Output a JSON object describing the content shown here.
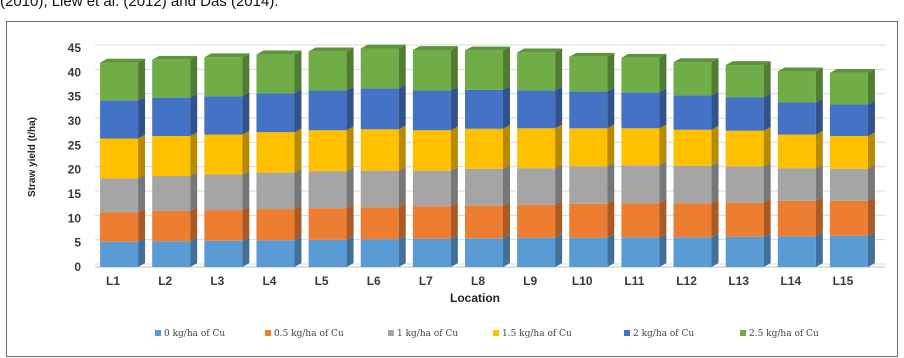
{
  "caption": "(2010), Liew et al. (2012) and Das (2014).",
  "chart_data": {
    "type": "bar",
    "stacked": true,
    "three_d": true,
    "title": "",
    "xlabel": "Location",
    "ylabel": "Straw yield (t/ha)",
    "ylim": [
      0,
      45
    ],
    "yticks": [
      0,
      5,
      10,
      15,
      20,
      25,
      30,
      35,
      40,
      45
    ],
    "grid": true,
    "legend_position": "bottom",
    "categories": [
      "L1",
      "L2",
      "L3",
      "L4",
      "L5",
      "L6",
      "L7",
      "L8",
      "L9",
      "L10",
      "L11",
      "L12",
      "L13",
      "L14",
      "L15"
    ],
    "series": [
      {
        "name": "0 kg/ha of Cu",
        "color": "#5b9bd5",
        "values": [
          5.2,
          5.3,
          5.4,
          5.5,
          5.6,
          5.7,
          5.8,
          5.9,
          6.0,
          6.0,
          6.1,
          6.1,
          6.2,
          6.3,
          6.4
        ]
      },
      {
        "name": "0.5 kg/ha of Cu",
        "color": "#ed7d31",
        "values": [
          6.0,
          6.2,
          6.3,
          6.4,
          6.5,
          6.6,
          6.7,
          6.7,
          6.8,
          7.0,
          7.0,
          7.0,
          7.0,
          7.3,
          7.2
        ]
      },
      {
        "name": "1 kg/ha of Cu",
        "color": "#a5a5a5",
        "values": [
          7.0,
          7.2,
          7.3,
          7.5,
          7.6,
          7.5,
          7.3,
          7.6,
          7.5,
          7.7,
          7.8,
          7.7,
          7.5,
          6.7,
          6.6
        ]
      },
      {
        "name": "1.5 kg/ha of Cu",
        "color": "#ffc000",
        "values": [
          8.2,
          8.2,
          8.2,
          8.3,
          8.4,
          8.5,
          8.3,
          8.2,
          8.2,
          7.8,
          7.6,
          7.4,
          7.3,
          6.9,
          6.7
        ]
      },
      {
        "name": "2 kg/ha of Cu",
        "color": "#4472c4",
        "values": [
          7.8,
          7.9,
          7.9,
          8.0,
          8.2,
          8.4,
          8.2,
          8.0,
          7.8,
          7.6,
          7.4,
          7.1,
          6.9,
          6.6,
          6.5
        ]
      },
      {
        "name": "2.5 kg/ha of Cu",
        "color": "#70ad47",
        "values": [
          7.8,
          7.8,
          8.0,
          8.0,
          8.0,
          8.2,
          8.3,
          8.1,
          7.8,
          7.1,
          7.1,
          6.8,
          6.6,
          6.4,
          6.5
        ]
      }
    ]
  }
}
